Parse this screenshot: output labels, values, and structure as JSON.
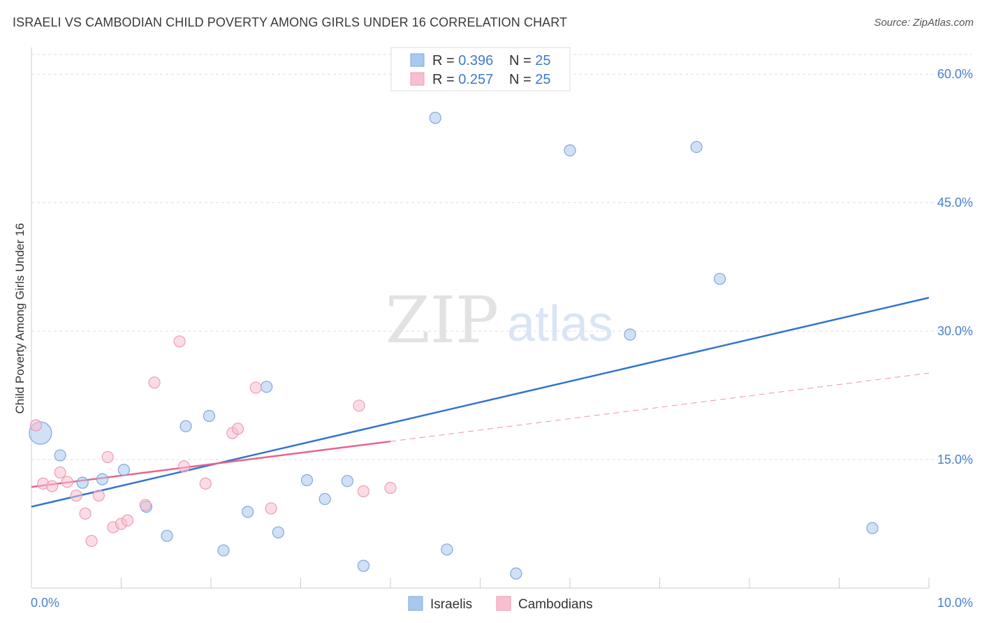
{
  "title": "ISRAELI VS CAMBODIAN CHILD POVERTY AMONG GIRLS UNDER 16 CORRELATION CHART",
  "source": "Source: ZipAtlas.com",
  "watermark": {
    "zip": "ZIP",
    "atlas": "atlas"
  },
  "chart_data": {
    "type": "scatter",
    "ylabel": "Child Poverty Among Girls Under 16",
    "x_tick_labels": [
      "0.0%",
      "10.0%"
    ],
    "y_tick_labels": [
      "15.0%",
      "30.0%",
      "45.0%",
      "60.0%"
    ],
    "y_ticks": [
      15,
      30,
      45,
      60
    ],
    "xlim": [
      0,
      10
    ],
    "ylim": [
      0,
      62.3
    ],
    "grid": true,
    "legend_position": "top-center",
    "stats": [
      {
        "r_label": "R = ",
        "r_value": "0.396",
        "n_label": "N = ",
        "n_value": "25"
      },
      {
        "r_label": "R = ",
        "r_value": "0.257",
        "n_label": "N = ",
        "n_value": "25"
      }
    ],
    "series": [
      {
        "name": "Israelis",
        "color": "#a9c8ef",
        "stroke": "#7ea8de",
        "line_color": "#3275cf",
        "trend": {
          "x": [
            0,
            10
          ],
          "y": [
            9.5,
            33.9
          ],
          "dashed_from": null
        },
        "points": [
          {
            "x": 0.1,
            "y": 18.1,
            "big": true
          },
          {
            "x": 0.32,
            "y": 15.5
          },
          {
            "x": 0.57,
            "y": 12.3
          },
          {
            "x": 0.79,
            "y": 12.7
          },
          {
            "x": 1.03,
            "y": 13.8
          },
          {
            "x": 1.28,
            "y": 9.5
          },
          {
            "x": 1.51,
            "y": 6.1
          },
          {
            "x": 1.72,
            "y": 18.9
          },
          {
            "x": 1.98,
            "y": 20.1
          },
          {
            "x": 2.14,
            "y": 4.4
          },
          {
            "x": 2.41,
            "y": 8.9
          },
          {
            "x": 2.62,
            "y": 23.5
          },
          {
            "x": 2.75,
            "y": 6.5
          },
          {
            "x": 3.07,
            "y": 12.6
          },
          {
            "x": 3.27,
            "y": 10.4
          },
          {
            "x": 3.52,
            "y": 12.5
          },
          {
            "x": 3.7,
            "y": 2.6
          },
          {
            "x": 4.5,
            "y": 54.9
          },
          {
            "x": 4.63,
            "y": 4.5
          },
          {
            "x": 5.4,
            "y": 1.7
          },
          {
            "x": 6.0,
            "y": 51.1
          },
          {
            "x": 6.67,
            "y": 29.6
          },
          {
            "x": 7.41,
            "y": 51.5
          },
          {
            "x": 7.67,
            "y": 36.1
          },
          {
            "x": 9.37,
            "y": 7.0
          }
        ]
      },
      {
        "name": "Cambodians",
        "color": "#f7bfd0",
        "stroke": "#ec9db4",
        "line_color": "#e8638c",
        "trend": {
          "x": [
            0,
            10
          ],
          "y": [
            11.8,
            25.1
          ],
          "dashed_from": 4.0
        },
        "points": [
          {
            "x": 0.05,
            "y": 19.0
          },
          {
            "x": 0.13,
            "y": 12.2
          },
          {
            "x": 0.23,
            "y": 11.9
          },
          {
            "x": 0.32,
            "y": 13.5
          },
          {
            "x": 0.4,
            "y": 12.4
          },
          {
            "x": 0.5,
            "y": 10.8
          },
          {
            "x": 0.6,
            "y": 8.7
          },
          {
            "x": 0.67,
            "y": 5.5
          },
          {
            "x": 0.75,
            "y": 10.8
          },
          {
            "x": 0.85,
            "y": 15.3
          },
          {
            "x": 0.91,
            "y": 7.1
          },
          {
            "x": 1.0,
            "y": 7.5
          },
          {
            "x": 1.07,
            "y": 7.9
          },
          {
            "x": 1.27,
            "y": 9.7
          },
          {
            "x": 1.37,
            "y": 24.0
          },
          {
            "x": 1.65,
            "y": 28.8
          },
          {
            "x": 1.7,
            "y": 14.2
          },
          {
            "x": 1.94,
            "y": 12.2
          },
          {
            "x": 2.24,
            "y": 18.1
          },
          {
            "x": 2.3,
            "y": 18.6
          },
          {
            "x": 2.5,
            "y": 23.4
          },
          {
            "x": 2.67,
            "y": 9.3
          },
          {
            "x": 3.65,
            "y": 21.3
          },
          {
            "x": 3.7,
            "y": 11.3
          },
          {
            "x": 4.0,
            "y": 11.7
          }
        ]
      }
    ]
  }
}
